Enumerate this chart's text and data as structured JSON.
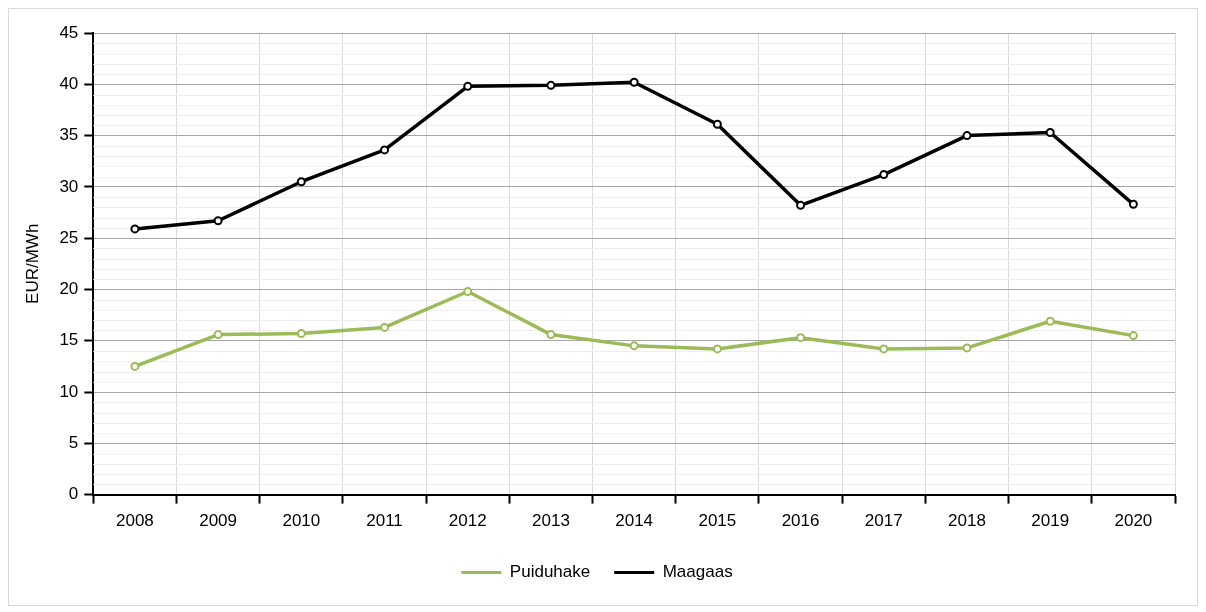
{
  "chart_data": {
    "type": "line",
    "ylabel": "EUR/MWh",
    "categories": [
      "2008",
      "2009",
      "2010",
      "2011",
      "2012",
      "2013",
      "2014",
      "2015",
      "2016",
      "2017",
      "2018",
      "2019",
      "2020"
    ],
    "series": [
      {
        "name": "Puiduhake",
        "color": "#9bbb59",
        "values": [
          12.5,
          15.6,
          15.7,
          16.3,
          19.8,
          15.6,
          14.5,
          14.2,
          15.3,
          14.2,
          14.3,
          16.9,
          15.5
        ]
      },
      {
        "name": "Maagaas",
        "color": "#000000",
        "values": [
          25.9,
          26.7,
          30.5,
          33.6,
          39.8,
          39.9,
          40.2,
          36.1,
          28.2,
          31.2,
          35.0,
          35.3,
          28.3
        ]
      }
    ],
    "ylim": [
      0,
      45
    ],
    "yticks": [
      0,
      5,
      10,
      15,
      20,
      25,
      30,
      35,
      40,
      45
    ],
    "grid": true,
    "legend": "bottom",
    "marker": "circle"
  }
}
